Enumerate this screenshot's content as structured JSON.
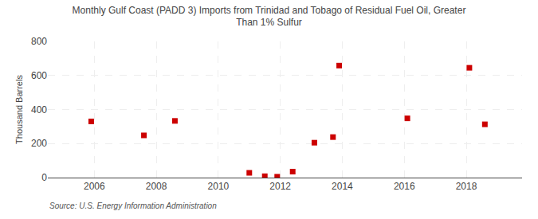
{
  "chart_data": {
    "type": "scatter",
    "title": "Monthly Gulf Coast (PADD 3) Imports from Trinidad and Tobago of Residual Fuel Oil, Greater\nThan 1% Sulfur",
    "ylabel": "Thousand Barrels",
    "annotations": [
      "Source: U.S. Energy Information Administration"
    ],
    "x": [
      2005.9,
      2007.6,
      2008.6,
      2011.0,
      2011.5,
      2011.9,
      2012.4,
      2013.1,
      2013.7,
      2013.9,
      2016.1,
      2018.1,
      2018.6
    ],
    "values": [
      330,
      248,
      333,
      28,
      8,
      5,
      35,
      205,
      238,
      658,
      348,
      645,
      313
    ],
    "color": "#cc0000",
    "marker": "square",
    "xlim": [
      2004.5,
      2019.8
    ],
    "ylim": [
      0,
      800
    ],
    "xticks": [
      2006,
      2008,
      2010,
      2012,
      2014,
      2016,
      2018
    ],
    "yticks": [
      0,
      200,
      400,
      600,
      800
    ],
    "grid": true
  }
}
